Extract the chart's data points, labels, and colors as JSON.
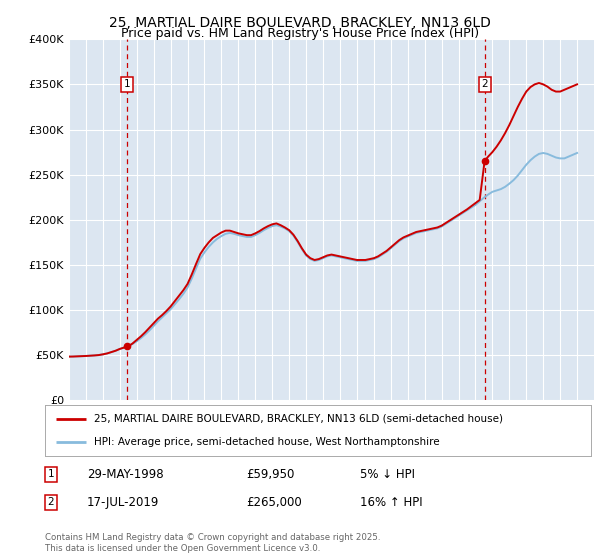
{
  "title_line1": "25, MARTIAL DAIRE BOULEVARD, BRACKLEY, NN13 6LD",
  "title_line2": "Price paid vs. HM Land Registry's House Price Index (HPI)",
  "legend_line1": "25, MARTIAL DAIRE BOULEVARD, BRACKLEY, NN13 6LD (semi-detached house)",
  "legend_line2": "HPI: Average price, semi-detached house, West Northamptonshire",
  "marker1_date": "29-MAY-1998",
  "marker1_price": "£59,950",
  "marker1_hpi": "5% ↓ HPI",
  "marker2_date": "17-JUL-2019",
  "marker2_price": "£265,000",
  "marker2_hpi": "16% ↑ HPI",
  "footnote": "Contains HM Land Registry data © Crown copyright and database right 2025.\nThis data is licensed under the Open Government Licence v3.0.",
  "price_color": "#cc0000",
  "hpi_color": "#88bbdd",
  "background_color": "#dce6f1",
  "grid_color": "#ffffff",
  "marker1_x": 1998.41,
  "marker1_y": 59950,
  "marker2_x": 2019.54,
  "marker2_y": 265000,
  "ylim": [
    0,
    400000
  ],
  "xlim_start": 1995,
  "xlim_end": 2026,
  "yticks": [
    0,
    50000,
    100000,
    150000,
    200000,
    250000,
    300000,
    350000,
    400000
  ],
  "ytick_labels": [
    "£0",
    "£50K",
    "£100K",
    "£150K",
    "£200K",
    "£250K",
    "£300K",
    "£350K",
    "£400K"
  ],
  "hpi_data_x": [
    1995.0,
    1995.25,
    1995.5,
    1995.75,
    1996.0,
    1996.25,
    1996.5,
    1996.75,
    1997.0,
    1997.25,
    1997.5,
    1997.75,
    1998.0,
    1998.25,
    1998.5,
    1998.75,
    1999.0,
    1999.25,
    1999.5,
    1999.75,
    2000.0,
    2000.25,
    2000.5,
    2000.75,
    2001.0,
    2001.25,
    2001.5,
    2001.75,
    2002.0,
    2002.25,
    2002.5,
    2002.75,
    2003.0,
    2003.25,
    2003.5,
    2003.75,
    2004.0,
    2004.25,
    2004.5,
    2004.75,
    2005.0,
    2005.25,
    2005.5,
    2005.75,
    2006.0,
    2006.25,
    2006.5,
    2006.75,
    2007.0,
    2007.25,
    2007.5,
    2007.75,
    2008.0,
    2008.25,
    2008.5,
    2008.75,
    2009.0,
    2009.25,
    2009.5,
    2009.75,
    2010.0,
    2010.25,
    2010.5,
    2010.75,
    2011.0,
    2011.25,
    2011.5,
    2011.75,
    2012.0,
    2012.25,
    2012.5,
    2012.75,
    2013.0,
    2013.25,
    2013.5,
    2013.75,
    2014.0,
    2014.25,
    2014.5,
    2014.75,
    2015.0,
    2015.25,
    2015.5,
    2015.75,
    2016.0,
    2016.25,
    2016.5,
    2016.75,
    2017.0,
    2017.25,
    2017.5,
    2017.75,
    2018.0,
    2018.25,
    2018.5,
    2018.75,
    2019.0,
    2019.25,
    2019.5,
    2019.75,
    2020.0,
    2020.25,
    2020.5,
    2020.75,
    2021.0,
    2021.25,
    2021.5,
    2021.75,
    2022.0,
    2022.25,
    2022.5,
    2022.75,
    2023.0,
    2023.25,
    2023.5,
    2023.75,
    2024.0,
    2024.25,
    2024.5,
    2024.75,
    2025.0
  ],
  "hpi_data_y": [
    48500,
    48600,
    48800,
    49000,
    49200,
    49500,
    49800,
    50200,
    51000,
    52000,
    53500,
    55000,
    57000,
    58500,
    60000,
    62500,
    65500,
    69000,
    73000,
    77500,
    82500,
    87500,
    92000,
    96500,
    101000,
    106500,
    112000,
    118000,
    125000,
    135000,
    146000,
    157000,
    164000,
    170000,
    175000,
    179000,
    182000,
    184500,
    185500,
    184500,
    183000,
    182000,
    181000,
    181000,
    183000,
    185500,
    188500,
    191000,
    193000,
    194000,
    192500,
    190500,
    187500,
    182500,
    175500,
    167500,
    160500,
    156500,
    154500,
    155500,
    157500,
    159500,
    160500,
    159500,
    158500,
    157500,
    156500,
    155500,
    154500,
    154500,
    154500,
    155500,
    156500,
    158500,
    161500,
    164500,
    168500,
    172500,
    176500,
    179500,
    181500,
    183500,
    185500,
    186500,
    187500,
    188500,
    189500,
    190500,
    192500,
    195500,
    198500,
    201500,
    204500,
    207500,
    210500,
    213500,
    216500,
    220500,
    224500,
    228000,
    231000,
    232500,
    234000,
    236500,
    240000,
    244000,
    249000,
    255000,
    261000,
    266000,
    270000,
    273000,
    274000,
    273000,
    271000,
    269000,
    268000,
    268000,
    270000,
    272000,
    274000
  ],
  "price_data_x": [
    1995.0,
    1995.25,
    1995.5,
    1995.75,
    1996.0,
    1996.25,
    1996.5,
    1996.75,
    1997.0,
    1997.25,
    1997.5,
    1997.75,
    1998.0,
    1998.25,
    1998.5,
    1998.75,
    1999.0,
    1999.25,
    1999.5,
    1999.75,
    2000.0,
    2000.25,
    2000.5,
    2000.75,
    2001.0,
    2001.25,
    2001.5,
    2001.75,
    2002.0,
    2002.25,
    2002.5,
    2002.75,
    2003.0,
    2003.25,
    2003.5,
    2003.75,
    2004.0,
    2004.25,
    2004.5,
    2004.75,
    2005.0,
    2005.25,
    2005.5,
    2005.75,
    2006.0,
    2006.25,
    2006.5,
    2006.75,
    2007.0,
    2007.25,
    2007.5,
    2007.75,
    2008.0,
    2008.25,
    2008.5,
    2008.75,
    2009.0,
    2009.25,
    2009.5,
    2009.75,
    2010.0,
    2010.25,
    2010.5,
    2010.75,
    2011.0,
    2011.25,
    2011.5,
    2011.75,
    2012.0,
    2012.25,
    2012.5,
    2012.75,
    2013.0,
    2013.25,
    2013.5,
    2013.75,
    2014.0,
    2014.25,
    2014.5,
    2014.75,
    2015.0,
    2015.25,
    2015.5,
    2015.75,
    2016.0,
    2016.25,
    2016.5,
    2016.75,
    2017.0,
    2017.25,
    2017.5,
    2017.75,
    2018.0,
    2018.25,
    2018.5,
    2018.75,
    2019.0,
    2019.25,
    2019.54,
    2019.75,
    2020.0,
    2020.25,
    2020.5,
    2020.75,
    2021.0,
    2021.25,
    2021.5,
    2021.75,
    2022.0,
    2022.25,
    2022.5,
    2022.75,
    2023.0,
    2023.25,
    2023.5,
    2023.75,
    2024.0,
    2024.25,
    2024.5,
    2024.75,
    2025.0
  ],
  "price_data_y": [
    48500,
    48600,
    48800,
    49000,
    49200,
    49500,
    49800,
    50200,
    51000,
    52000,
    53500,
    55000,
    57000,
    58500,
    59950,
    63000,
    67000,
    71000,
    75500,
    80500,
    85500,
    90500,
    94500,
    99000,
    104000,
    110000,
    116000,
    122000,
    129000,
    139500,
    151000,
    162000,
    169000,
    175000,
    180000,
    183000,
    186000,
    188000,
    188000,
    186500,
    185000,
    184000,
    183000,
    183000,
    185000,
    187500,
    190500,
    193000,
    195000,
    196000,
    194000,
    191500,
    188500,
    183500,
    176500,
    168500,
    161500,
    157500,
    155500,
    156500,
    158500,
    160500,
    161500,
    160500,
    159500,
    158500,
    157500,
    156500,
    155500,
    155500,
    155500,
    156500,
    157500,
    159500,
    162500,
    165500,
    169500,
    173500,
    177500,
    180500,
    182500,
    184500,
    186500,
    187500,
    188500,
    189500,
    190500,
    191500,
    193500,
    196500,
    199500,
    202500,
    205500,
    208500,
    211500,
    215000,
    218500,
    222000,
    265000,
    270000,
    275000,
    281000,
    288000,
    296000,
    305000,
    315000,
    325000,
    334000,
    342000,
    347000,
    350000,
    351500,
    350000,
    347500,
    344000,
    342000,
    342000,
    344000,
    346000,
    348000,
    350000
  ]
}
